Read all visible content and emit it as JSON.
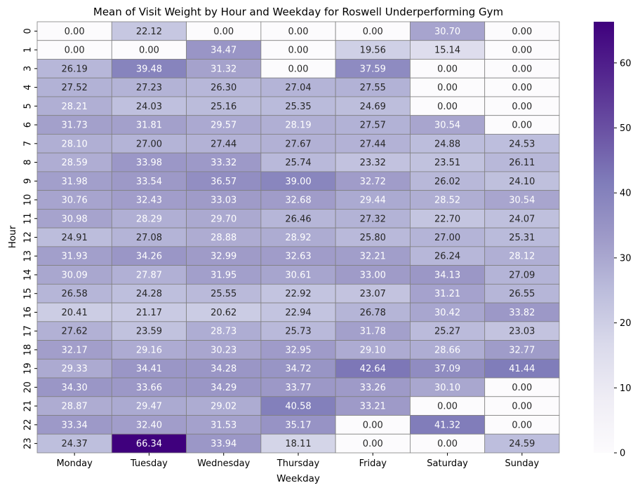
{
  "chart_data": {
    "type": "heatmap",
    "title": "Mean of Visit Weight by Hour and Weekday for Roswell Underperforming Gym",
    "xlabel": "Weekday",
    "ylabel": "Hour",
    "x_categories": [
      "Monday",
      "Tuesday",
      "Wednesday",
      "Thursday",
      "Friday",
      "Saturday",
      "Sunday"
    ],
    "y_categories": [
      "0",
      "1",
      "3",
      "4",
      "5",
      "6",
      "7",
      "8",
      "9",
      "10",
      "11",
      "12",
      "13",
      "14",
      "15",
      "16",
      "17",
      "18",
      "19",
      "20",
      "21",
      "22",
      "23"
    ],
    "values": [
      [
        0.0,
        22.12,
        0.0,
        0.0,
        0.0,
        30.7,
        0.0
      ],
      [
        0.0,
        0.0,
        34.47,
        0.0,
        19.56,
        15.14,
        0.0
      ],
      [
        26.19,
        39.48,
        31.32,
        0.0,
        37.59,
        0.0,
        0.0
      ],
      [
        27.52,
        27.23,
        26.3,
        27.04,
        27.55,
        0.0,
        0.0
      ],
      [
        28.21,
        24.03,
        25.16,
        25.35,
        24.69,
        0.0,
        0.0
      ],
      [
        31.73,
        31.81,
        29.57,
        28.19,
        27.57,
        30.54,
        0.0
      ],
      [
        28.1,
        27.0,
        27.44,
        27.67,
        27.44,
        24.88,
        24.53
      ],
      [
        28.59,
        33.98,
        33.32,
        25.74,
        23.32,
        23.51,
        26.11
      ],
      [
        31.98,
        33.54,
        36.57,
        39.0,
        32.72,
        26.02,
        24.1
      ],
      [
        30.76,
        32.43,
        33.03,
        32.68,
        29.44,
        28.52,
        30.54
      ],
      [
        30.98,
        28.29,
        29.7,
        26.46,
        27.32,
        22.7,
        24.07
      ],
      [
        24.91,
        27.08,
        28.88,
        28.92,
        25.8,
        27.0,
        25.31
      ],
      [
        31.93,
        34.26,
        32.99,
        32.63,
        32.21,
        26.24,
        28.12
      ],
      [
        30.09,
        27.87,
        31.95,
        30.61,
        33.0,
        34.13,
        27.09
      ],
      [
        26.58,
        24.28,
        25.55,
        22.92,
        23.07,
        31.21,
        26.55
      ],
      [
        20.41,
        21.17,
        20.62,
        22.94,
        26.78,
        30.42,
        33.82
      ],
      [
        27.62,
        23.59,
        28.73,
        25.73,
        31.78,
        25.27,
        23.03
      ],
      [
        32.17,
        29.16,
        30.23,
        32.95,
        29.1,
        28.66,
        32.77
      ],
      [
        29.33,
        34.41,
        34.28,
        34.72,
        42.64,
        37.09,
        41.44
      ],
      [
        34.3,
        33.66,
        34.29,
        33.77,
        33.26,
        30.1,
        0.0
      ],
      [
        28.87,
        29.47,
        29.02,
        40.58,
        33.21,
        0.0,
        0.0
      ],
      [
        33.34,
        32.4,
        31.53,
        35.17,
        0.0,
        41.32,
        0.0
      ],
      [
        24.37,
        66.34,
        33.94,
        18.11,
        0.0,
        0.0,
        24.59
      ]
    ],
    "value_format": "2 decimals",
    "colormap": "Purples",
    "colorbar": {
      "min": 0,
      "max": 66.34,
      "ticks": [
        0,
        10,
        20,
        30,
        40,
        50,
        60
      ]
    },
    "cell_edge_color": "#808080",
    "grid": false,
    "legend": "colorbar-right"
  }
}
